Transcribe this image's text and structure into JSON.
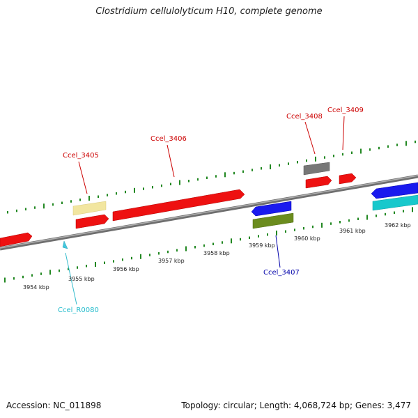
{
  "title": "Clostridium cellulolyticum H10, complete genome",
  "footer": {
    "accession": "Accession: NC_011898",
    "summary": "Topology: circular; Length: 4,068,724 bp; Genes: 3,477"
  },
  "colors": {
    "red": "#ee1111",
    "yellow": "#f2e6a0",
    "gray": "#777777",
    "blue": "#1a1aee",
    "olive": "#6b8c1e",
    "cyan": "#18c8cc",
    "tick": "#228822",
    "backbone": "#8a8a8a"
  },
  "scale_labels": [
    "3954 kbp",
    "3955 kbp",
    "3956 kbp",
    "3957 kbp",
    "3958 kbp",
    "3959 kbp",
    "3960 kbp",
    "3961 kbp",
    "3962 kbp"
  ],
  "gene_labels": [
    {
      "text": "Ccel_3405",
      "color": "#cc0000"
    },
    {
      "text": "Ccel_3406",
      "color": "#cc0000"
    },
    {
      "text": "Ccel_3408",
      "color": "#cc0000"
    },
    {
      "text": "Ccel_3409",
      "color": "#cc0000"
    },
    {
      "text": "Ccel_3407",
      "color": "#0000aa"
    },
    {
      "text": "Ccel_R0080",
      "color": "#22bbcc"
    }
  ]
}
